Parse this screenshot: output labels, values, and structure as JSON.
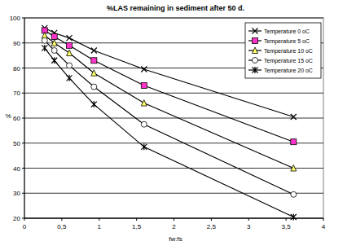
{
  "chart_data": {
    "type": "line",
    "title": "%LAS remaining in sediment after 50 d.",
    "x_label": "fw:fs",
    "y_label": "%",
    "x": [
      0.27,
      0.4,
      0.6,
      0.93,
      1.6,
      3.6
    ],
    "series": [
      {
        "name": "Temperature 0 oC",
        "color": "#000000",
        "marker": "x",
        "values": [
          96,
          94,
          92,
          87,
          79.5,
          60.5
        ]
      },
      {
        "name": "Temperature 5 oC",
        "color": "#ff33cc",
        "marker": "square",
        "values": [
          95,
          92.5,
          89,
          83,
          73,
          50.5
        ]
      },
      {
        "name": "Temperature 10 oC",
        "color": "#ffff66",
        "marker": "triangle",
        "values": [
          93,
          90,
          86,
          78,
          66,
          40
        ]
      },
      {
        "name": "Temperature 15 oC",
        "color": "#ffffff",
        "marker": "circle",
        "values": [
          91,
          87,
          81,
          72.5,
          57.5,
          29.5
        ]
      },
      {
        "name": "Temperature 20 oC",
        "color": "#000000",
        "marker": "asterisk",
        "values": [
          88,
          83,
          76,
          65.5,
          48.5,
          20.5
        ]
      }
    ],
    "xlim": [
      0,
      4
    ],
    "xticks": [
      0,
      {
        "value": 0.5,
        "label": "0,5"
      },
      1,
      {
        "value": 1.5,
        "label": "1,5"
      },
      2,
      {
        "value": 2.5,
        "label": "2,5"
      },
      3,
      {
        "value": 3.5,
        "label": "3,5"
      },
      4
    ],
    "ylim": [
      20,
      100
    ],
    "yticks": [
      20,
      30,
      40,
      50,
      60,
      70,
      80,
      90,
      100
    ],
    "grid": true,
    "legend": "top-right"
  }
}
